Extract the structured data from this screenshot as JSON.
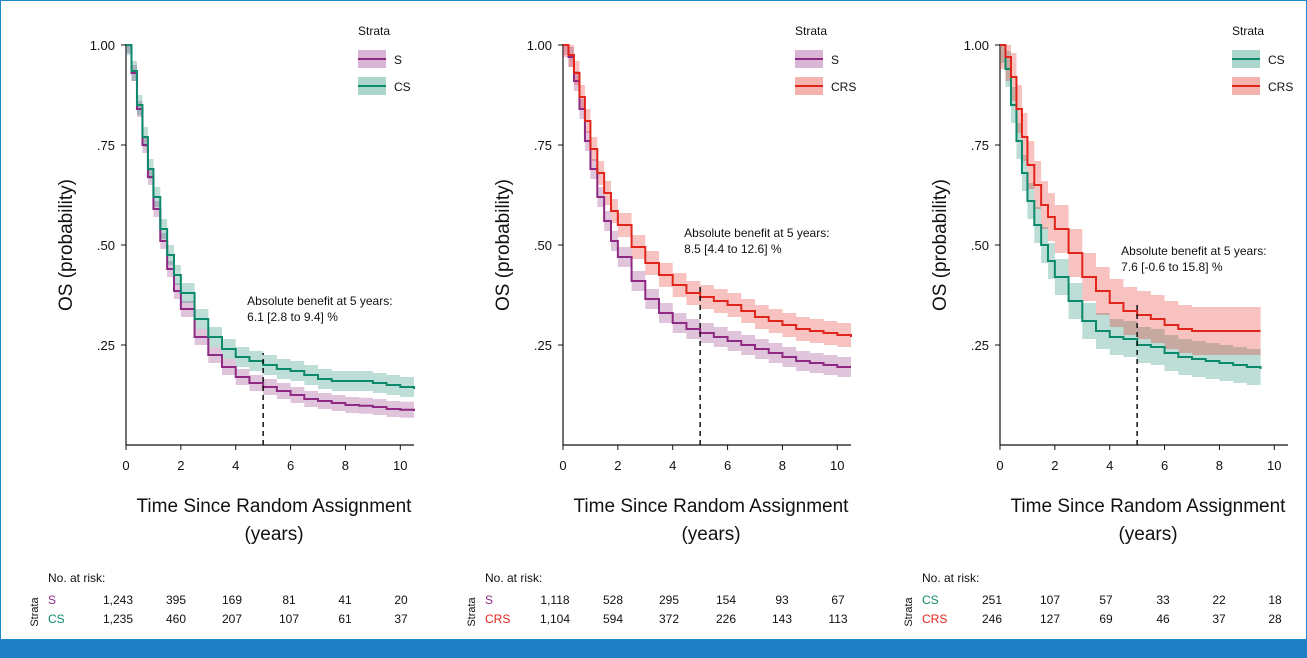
{
  "colors": {
    "S": "#8e2a83",
    "CS": "#0d8a6c",
    "CRS": "#e1251b",
    "frame": "#1e88c8",
    "bar": "#1e7fc4"
  },
  "chart_data": [
    {
      "type": "line",
      "xlabel": "Time Since Random Assignment\n(years)",
      "ylabel": "OS (probability)",
      "xlim": [
        0,
        10.5
      ],
      "ylim": [
        0,
        1
      ],
      "xticks": [
        0,
        2,
        4,
        6,
        8,
        10
      ],
      "yticks": [
        {
          "v": 0.25,
          "label": ".25"
        },
        {
          "v": 0.5,
          "label": ".50"
        },
        {
          "v": 0.75,
          "label": ".75"
        },
        {
          "v": 1.0,
          "label": "1.00"
        }
      ],
      "legend_title": "Strata",
      "annotation": {
        "line1": "Absolute benefit at 5 years:",
        "line2": "6.1 [2.8 to 9.4] %",
        "x": 5
      },
      "series": [
        {
          "name": "S",
          "color_key": "S",
          "x": [
            0,
            0.2,
            0.4,
            0.6,
            0.8,
            1,
            1.25,
            1.5,
            1.75,
            2,
            2.5,
            3,
            3.5,
            4,
            4.5,
            5,
            5.5,
            6,
            6.5,
            7,
            7.5,
            8,
            8.5,
            9,
            9.5,
            10,
            10.5
          ],
          "y": [
            1,
            0.93,
            0.84,
            0.75,
            0.67,
            0.59,
            0.51,
            0.44,
            0.385,
            0.34,
            0.27,
            0.225,
            0.195,
            0.17,
            0.155,
            0.145,
            0.135,
            0.125,
            0.115,
            0.11,
            0.105,
            0.1,
            0.098,
            0.095,
            0.09,
            0.088,
            0.085
          ],
          "band": 0.02
        },
        {
          "name": "CS",
          "color_key": "CS",
          "x": [
            0,
            0.2,
            0.4,
            0.6,
            0.8,
            1,
            1.25,
            1.5,
            1.75,
            2,
            2.5,
            3,
            3.5,
            4,
            4.5,
            5,
            5.5,
            6,
            6.5,
            7,
            7.5,
            8,
            8.5,
            9,
            9.5,
            10,
            10.5
          ],
          "y": [
            1,
            0.935,
            0.85,
            0.77,
            0.69,
            0.62,
            0.54,
            0.475,
            0.425,
            0.38,
            0.315,
            0.27,
            0.24,
            0.22,
            0.21,
            0.2,
            0.19,
            0.185,
            0.175,
            0.165,
            0.16,
            0.16,
            0.16,
            0.155,
            0.15,
            0.145,
            0.14
          ],
          "band": 0.025
        }
      ],
      "risk": {
        "title": "No. at risk:",
        "strata_label": "Strata",
        "times": [
          0,
          2,
          4,
          6,
          8,
          10
        ],
        "rows": [
          {
            "name": "S",
            "color_key": "S",
            "values": [
              "1,243",
              "395",
              "169",
              "81",
              "41",
              "20"
            ]
          },
          {
            "name": "CS",
            "color_key": "CS",
            "values": [
              "1,235",
              "460",
              "207",
              "107",
              "61",
              "37"
            ]
          }
        ]
      }
    },
    {
      "type": "line",
      "xlabel": "Time Since Random Assignment\n(years)",
      "ylabel": "OS (probability)",
      "xlim": [
        0,
        10.5
      ],
      "ylim": [
        0,
        1
      ],
      "xticks": [
        0,
        2,
        4,
        6,
        8,
        10
      ],
      "yticks": [
        {
          "v": 0.25,
          "label": ".25"
        },
        {
          "v": 0.5,
          "label": ".50"
        },
        {
          "v": 0.75,
          "label": ".75"
        },
        {
          "v": 1.0,
          "label": "1.00"
        }
      ],
      "legend_title": "Strata",
      "annotation": {
        "line1": "Absolute benefit at 5 years:",
        "line2": "8.5 [4.4 to 12.6] %",
        "x": 5
      },
      "series": [
        {
          "name": "S",
          "color_key": "S",
          "x": [
            0,
            0.2,
            0.4,
            0.6,
            0.8,
            1,
            1.25,
            1.5,
            1.75,
            2,
            2.5,
            3,
            3.5,
            4,
            4.5,
            5,
            5.5,
            6,
            6.5,
            7,
            7.5,
            8,
            8.5,
            9,
            9.5,
            10,
            10.5
          ],
          "y": [
            1,
            0.97,
            0.91,
            0.84,
            0.76,
            0.69,
            0.62,
            0.56,
            0.51,
            0.47,
            0.41,
            0.365,
            0.33,
            0.305,
            0.29,
            0.28,
            0.27,
            0.26,
            0.25,
            0.24,
            0.23,
            0.22,
            0.21,
            0.205,
            0.2,
            0.195,
            0.195
          ],
          "band": 0.025
        },
        {
          "name": "CRS",
          "color_key": "CRS",
          "x": [
            0,
            0.2,
            0.4,
            0.6,
            0.8,
            1,
            1.25,
            1.5,
            1.75,
            2,
            2.5,
            3,
            3.5,
            4,
            4.5,
            5,
            5.5,
            6,
            6.5,
            7,
            7.5,
            8,
            8.5,
            9,
            9.5,
            10,
            10.5
          ],
          "y": [
            1,
            0.975,
            0.93,
            0.87,
            0.81,
            0.74,
            0.68,
            0.63,
            0.585,
            0.55,
            0.495,
            0.455,
            0.425,
            0.4,
            0.38,
            0.37,
            0.36,
            0.35,
            0.335,
            0.32,
            0.31,
            0.3,
            0.29,
            0.285,
            0.28,
            0.275,
            0.27
          ],
          "band": 0.03
        }
      ],
      "risk": {
        "title": "No. at risk:",
        "strata_label": "Strata",
        "times": [
          0,
          2,
          4,
          6,
          8,
          10
        ],
        "rows": [
          {
            "name": "S",
            "color_key": "S",
            "values": [
              "1,118",
              "528",
              "295",
              "154",
              "93",
              "67"
            ]
          },
          {
            "name": "CRS",
            "color_key": "CRS",
            "values": [
              "1,104",
              "594",
              "372",
              "226",
              "143",
              "113"
            ]
          }
        ]
      }
    },
    {
      "type": "line",
      "xlabel": "Time Since Random Assignment\n(years)",
      "ylabel": "OS (probability)",
      "xlim": [
        0,
        10.5
      ],
      "ylim": [
        0,
        1
      ],
      "xticks": [
        0,
        2,
        4,
        6,
        8,
        10
      ],
      "yticks": [
        {
          "v": 0.25,
          "label": ".25"
        },
        {
          "v": 0.5,
          "label": ".50"
        },
        {
          "v": 0.75,
          "label": ".75"
        },
        {
          "v": 1.0,
          "label": "1.00"
        }
      ],
      "legend_title": "Strata",
      "annotation": {
        "line1": "Absolute benefit at 5 years:",
        "line2": "7.6 [-0.6 to 15.8] %",
        "x": 5
      },
      "series": [
        {
          "name": "CS",
          "color_key": "CS",
          "x": [
            0,
            0.2,
            0.4,
            0.6,
            0.8,
            1,
            1.25,
            1.5,
            1.75,
            2,
            2.5,
            3,
            3.5,
            4,
            4.5,
            5,
            5.5,
            6,
            6.5,
            7,
            7.5,
            8,
            8.5,
            9,
            9.5
          ],
          "y": [
            1,
            0.94,
            0.85,
            0.76,
            0.68,
            0.61,
            0.55,
            0.5,
            0.46,
            0.42,
            0.36,
            0.31,
            0.285,
            0.27,
            0.265,
            0.25,
            0.245,
            0.23,
            0.22,
            0.215,
            0.21,
            0.205,
            0.2,
            0.195,
            0.19
          ],
          "band": 0.045
        },
        {
          "name": "CRS",
          "color_key": "CRS",
          "x": [
            0,
            0.2,
            0.4,
            0.6,
            0.8,
            1,
            1.25,
            1.5,
            1.75,
            2,
            2.5,
            3,
            3.5,
            4,
            4.5,
            5,
            5.5,
            6,
            6.5,
            7,
            7.5,
            8,
            8.5,
            9,
            9.5
          ],
          "y": [
            1,
            0.97,
            0.92,
            0.84,
            0.77,
            0.7,
            0.65,
            0.6,
            0.57,
            0.54,
            0.48,
            0.42,
            0.385,
            0.355,
            0.335,
            0.325,
            0.315,
            0.3,
            0.29,
            0.285,
            0.285,
            0.285,
            0.285,
            0.285,
            0.285
          ],
          "band": 0.06
        }
      ],
      "risk": {
        "title": "No. at risk:",
        "strata_label": "Strata",
        "times": [
          0,
          2,
          4,
          6,
          8,
          10
        ],
        "rows": [
          {
            "name": "CS",
            "color_key": "CS",
            "values": [
              "251",
              "107",
              "57",
              "33",
              "22",
              "18"
            ]
          },
          {
            "name": "CRS",
            "color_key": "CRS",
            "values": [
              "246",
              "127",
              "69",
              "46",
              "37",
              "28"
            ]
          }
        ]
      }
    }
  ]
}
